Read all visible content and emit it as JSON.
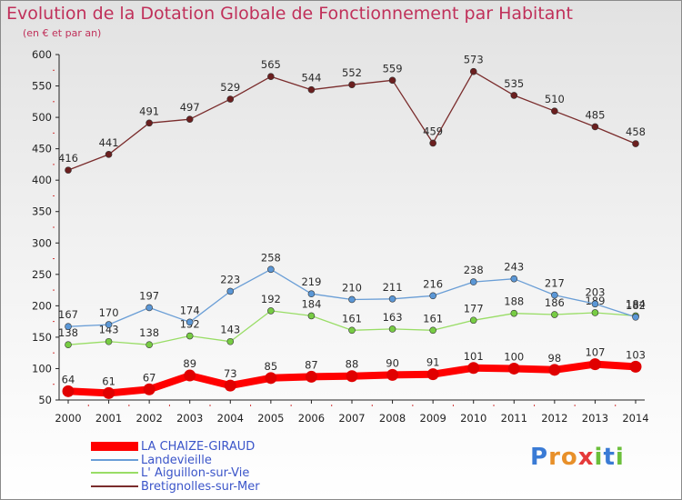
{
  "title": "Evolution de la Dotation Globale de Fonctionnement par Habitant",
  "subtitle": "(en € et par an)",
  "logo": {
    "text": "Proxiti"
  },
  "chart_data": {
    "type": "line",
    "x": [
      "2000",
      "2001",
      "2002",
      "2003",
      "2004",
      "2005",
      "2006",
      "2007",
      "2008",
      "2009",
      "2010",
      "2011",
      "2012",
      "2013",
      "2014"
    ],
    "ylim": [
      50,
      600
    ],
    "yticks": [
      50,
      100,
      150,
      200,
      250,
      300,
      350,
      400,
      450,
      500,
      550,
      600
    ],
    "grid": false,
    "legend_position": "bottom-left",
    "series": [
      {
        "name": "LA CHAIZE-GIRAUD",
        "color": "#ff0000",
        "marker_color": "#e00000",
        "line_width": 8,
        "marker_radius": 6.5,
        "values": [
          64,
          61,
          67,
          89,
          73,
          85,
          87,
          88,
          90,
          91,
          101,
          100,
          98,
          107,
          103
        ]
      },
      {
        "name": "Landevieille",
        "color": "#6a9ed6",
        "marker_color": "#5b97d6",
        "line_width": 1.3,
        "marker_radius": 3.5,
        "values": [
          167,
          170,
          197,
          174,
          223,
          258,
          219,
          210,
          211,
          216,
          238,
          243,
          217,
          203,
          182
        ]
      },
      {
        "name": "L' Aiguillon-sur-Vie",
        "color": "#99dd66",
        "marker_color": "#77cc44",
        "line_width": 1.3,
        "marker_radius": 3.5,
        "values": [
          138,
          143,
          138,
          152,
          143,
          192,
          184,
          161,
          163,
          161,
          177,
          188,
          186,
          189,
          184
        ]
      },
      {
        "name": "Bretignolles-sur-Mer",
        "color": "#7a2c2c",
        "marker_color": "#6b1f1f",
        "line_width": 1.3,
        "marker_radius": 3.5,
        "values": [
          416,
          441,
          491,
          497,
          529,
          565,
          544,
          552,
          559,
          459,
          573,
          535,
          510,
          485,
          458
        ]
      }
    ]
  }
}
